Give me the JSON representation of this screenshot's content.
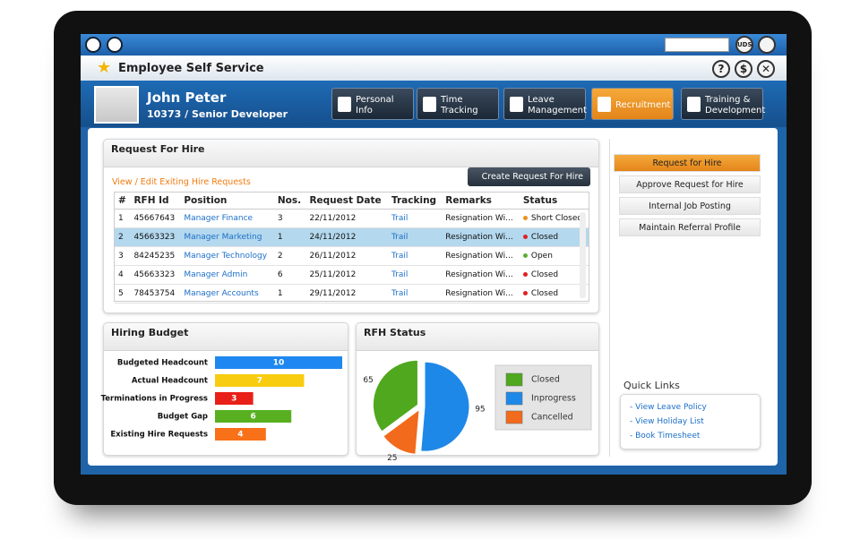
{
  "header": {
    "title": "Employee Self Service",
    "badge": "UDS"
  },
  "user": {
    "name": "John Peter",
    "role": "10373 / Senior Developer"
  },
  "nav": [
    "Personal Info",
    "Time Tracking",
    "Leave Management",
    "Recruitment",
    "Training & Development"
  ],
  "nav_active": 3,
  "request_panel": {
    "title": "Request For Hire",
    "link": "View / Edit Exiting Hire Requests",
    "button": "Create Request For Hire"
  },
  "table": {
    "headers": [
      "#",
      "RFH Id",
      "Position",
      "Nos.",
      "Request Date",
      "Tracking",
      "Remarks",
      "Status"
    ],
    "rows": [
      [
        "1",
        "45667643",
        "Manager Finance",
        "3",
        "22/11/2012",
        "Trail",
        "Resignation Wi...",
        "Short Closed"
      ],
      [
        "2",
        "45663323",
        "Manager Marketing",
        "1",
        "24/11/2012",
        "Trail",
        "Resignation Wi...",
        "Closed"
      ],
      [
        "3",
        "84245235",
        "Manager Technology",
        "2",
        "26/11/2012",
        "Trail",
        "Resignation Wi...",
        "Open"
      ],
      [
        "4",
        "45663323",
        "Manager Admin",
        "6",
        "25/11/2012",
        "Trail",
        "Resignation Wi...",
        "Closed"
      ],
      [
        "5",
        "78453754",
        "Manager Accounts",
        "1",
        "29/11/2012",
        "Trail",
        "Resignation Wi...",
        "Closed"
      ]
    ],
    "status_colors": [
      "#f0901e",
      "#e02020",
      "#5ab030",
      "#e02020",
      "#e02020"
    ],
    "selected_row": 1
  },
  "chart_data": [
    {
      "type": "bar",
      "orientation": "horizontal",
      "title": "Hiring Budget",
      "categories": [
        "Budgeted Headcount",
        "Actual Headcount",
        "Terminations in Progress",
        "Budget Gap",
        "Existing Hire Requests"
      ],
      "values": [
        10,
        7,
        3,
        6,
        4
      ],
      "colors": [
        "#1e88f0",
        "#f8cc10",
        "#e82018",
        "#58b020",
        "#f87018"
      ]
    },
    {
      "type": "pie",
      "title": "RFH Status",
      "categories": [
        "Closed",
        "Inprogress",
        "Cancelled"
      ],
      "values": [
        65,
        95,
        25
      ],
      "colors": [
        "#50a81e",
        "#1e88e8",
        "#f26a1b"
      ],
      "legend": "right"
    }
  ],
  "sidebar": {
    "items": [
      "Request for Hire",
      "Approve Request for Hire",
      "Internal Job Posting",
      "Maintain Referral Profile"
    ],
    "active": 0
  },
  "quick_links": {
    "title": "Quick Links",
    "links": [
      "View Leave Policy",
      "View Holiday List",
      "Book Timesheet"
    ]
  }
}
